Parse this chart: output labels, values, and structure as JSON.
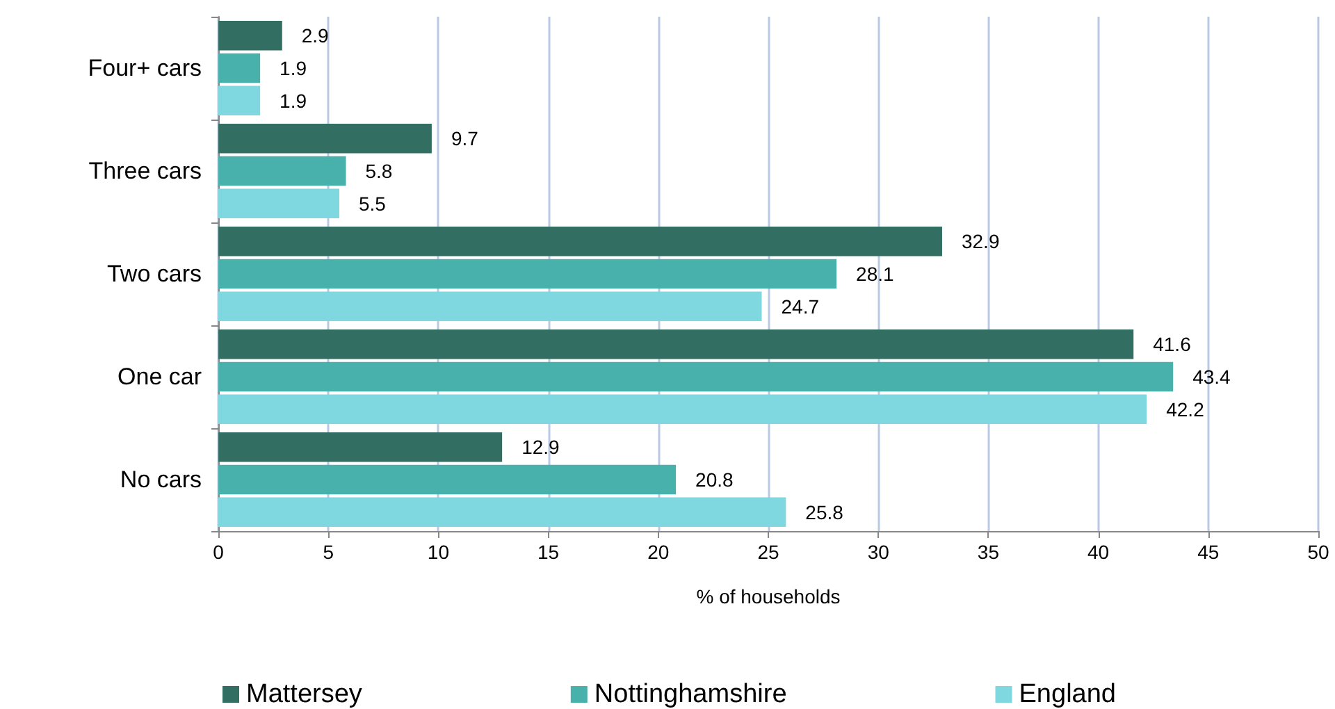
{
  "chart_data": {
    "type": "bar",
    "orientation": "horizontal",
    "xlabel": "% of households",
    "categories": [
      "Four+ cars",
      "Three cars",
      "Two cars",
      "One car",
      "No cars"
    ],
    "series": [
      {
        "name": "Mattersey",
        "color": "#336e62",
        "values": [
          2.9,
          9.7,
          32.9,
          41.6,
          12.9
        ]
      },
      {
        "name": "Nottinghamshire",
        "color": "#48b1ab",
        "values": [
          1.9,
          5.8,
          28.1,
          43.4,
          20.8
        ]
      },
      {
        "name": "England",
        "color": "#7fd7df",
        "values": [
          1.9,
          5.5,
          24.7,
          42.2,
          25.8
        ]
      }
    ],
    "xlim": [
      0,
      50
    ],
    "xticks": [
      0,
      5,
      10,
      15,
      20,
      25,
      30,
      35,
      40,
      45,
      50
    ],
    "grid": "x",
    "legend": "bottom",
    "data_labels": true
  }
}
